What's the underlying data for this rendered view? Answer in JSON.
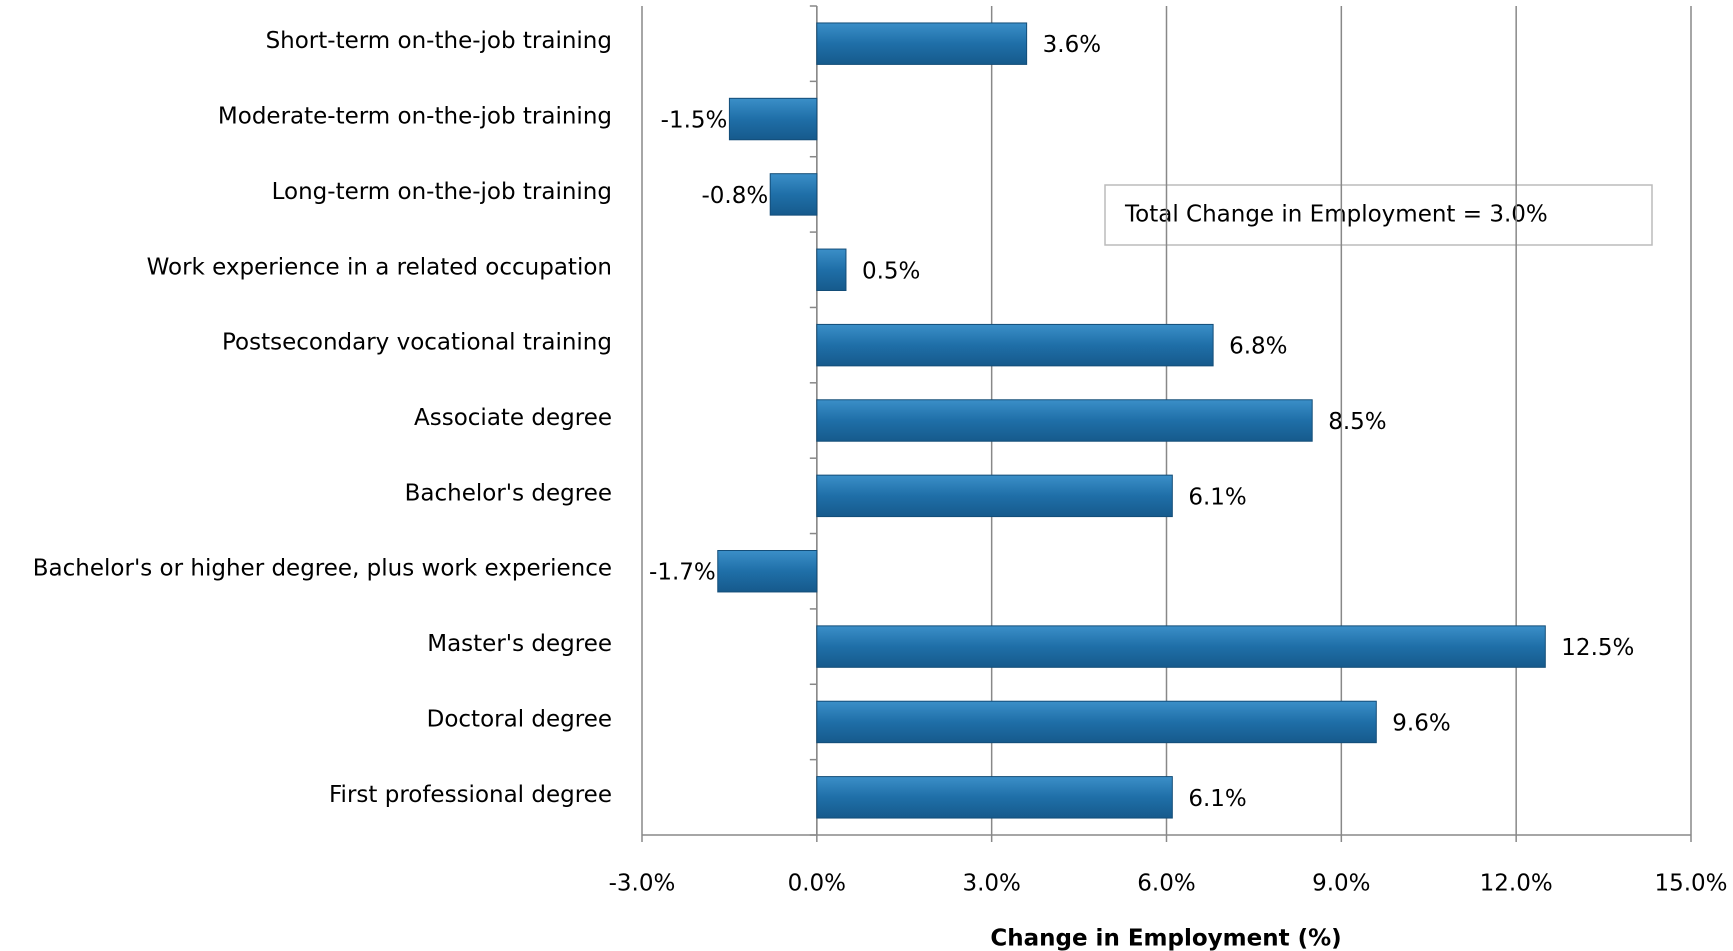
{
  "chart_data": {
    "type": "barh",
    "categories": [
      "Short-term on-the-job training",
      "Moderate-term on-the-job training",
      "Long-term on-the-job training",
      "Work experience in a related occupation",
      "Postsecondary vocational training",
      "Associate degree",
      "Bachelor's degree",
      "Bachelor's or higher degree, plus work experience",
      "Master's degree",
      "Doctoral degree",
      "First professional degree"
    ],
    "values": [
      3.6,
      -1.5,
      -0.8,
      0.5,
      6.8,
      8.5,
      6.1,
      -1.7,
      12.5,
      9.6,
      6.1
    ],
    "value_labels": [
      "3.6%",
      "-1.5%",
      "-0.8%",
      "0.5%",
      "6.8%",
      "8.5%",
      "6.1%",
      "-1.7%",
      "12.5%",
      "9.6%",
      "6.1%"
    ],
    "color": "#1f6fa8",
    "xlabel": "Change in Employment (%)",
    "xlim": [
      -3,
      15
    ],
    "xticks": [
      {
        "value": -3,
        "label": "-3.0%"
      },
      {
        "value": 0,
        "label": "0.0%"
      },
      {
        "value": 3,
        "label": "3.0%"
      },
      {
        "value": 6,
        "label": "6.0%"
      },
      {
        "value": 9,
        "label": "9.0%"
      },
      {
        "value": 12,
        "label": "12.0%"
      },
      {
        "value": 15,
        "label": "15.0%"
      }
    ],
    "grid": true,
    "annotation": "Total Change in Employment =  3.0%"
  }
}
